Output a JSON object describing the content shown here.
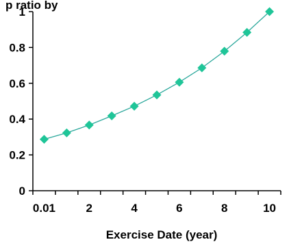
{
  "header_fragment": "p ratio by",
  "chart_data": {
    "type": "line",
    "title": "",
    "xlabel": "Exercise Date (year)",
    "ylabel": "",
    "x_ticks": [
      "0.01",
      "2",
      "4",
      "6",
      "8",
      "10"
    ],
    "y_ticks": [
      "0",
      "0.2",
      "0.4",
      "0.6",
      "0.8",
      "1"
    ],
    "ylim": [
      0,
      1
    ],
    "x": [
      0.01,
      1.01,
      2.01,
      3.01,
      4.01,
      5.01,
      6.01,
      7.01,
      8.01,
      9.01,
      10.01
    ],
    "series": [
      {
        "values": [
          0.287,
          0.323,
          0.367,
          0.418,
          0.472,
          0.535,
          0.606,
          0.686,
          0.779,
          0.884,
          1.0
        ]
      }
    ],
    "grid": false,
    "legend": "none",
    "line_color": "#2aa79b",
    "marker_color": "#1fc598",
    "marker_shape": "diamond"
  }
}
